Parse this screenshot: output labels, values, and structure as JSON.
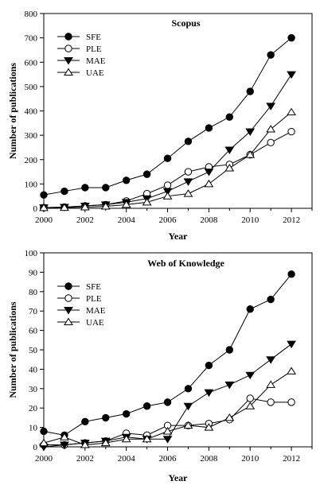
{
  "chart_data": [
    {
      "type": "line",
      "title": "Scopus",
      "xlabel": "Year",
      "ylabel": "Number of publications",
      "x": [
        2000,
        2001,
        2002,
        2003,
        2004,
        2005,
        2006,
        2007,
        2008,
        2009,
        2010,
        2011,
        2012
      ],
      "xlim": [
        2000,
        2013
      ],
      "ylim": [
        0,
        800
      ],
      "xticks": [
        2000,
        2002,
        2004,
        2006,
        2008,
        2010,
        2012
      ],
      "yticks": [
        0,
        100,
        200,
        300,
        400,
        500,
        600,
        700,
        800
      ],
      "legend_position": "top-left",
      "series": [
        {
          "name": "SFE",
          "marker": "filled-circle",
          "values": [
            55,
            70,
            85,
            85,
            115,
            140,
            205,
            275,
            330,
            375,
            480,
            630,
            700
          ]
        },
        {
          "name": "PLE",
          "marker": "open-circle",
          "values": [
            3,
            5,
            10,
            15,
            30,
            60,
            95,
            150,
            170,
            180,
            220,
            270,
            315
          ]
        },
        {
          "name": "MAE",
          "marker": "filled-triangle-down",
          "values": [
            3,
            5,
            10,
            15,
            25,
            40,
            70,
            110,
            150,
            240,
            315,
            420,
            550
          ]
        },
        {
          "name": "UAE",
          "marker": "open-triangle-up",
          "values": [
            2,
            3,
            5,
            8,
            15,
            25,
            50,
            60,
            100,
            165,
            220,
            325,
            395
          ]
        }
      ]
    },
    {
      "type": "line",
      "title": "Web of Knowledge",
      "xlabel": "Year",
      "ylabel": "Number of publications",
      "x": [
        2000,
        2001,
        2002,
        2003,
        2004,
        2005,
        2006,
        2007,
        2008,
        2009,
        2010,
        2011,
        2012
      ],
      "xlim": [
        2000,
        2013
      ],
      "ylim": [
        0,
        100
      ],
      "xticks": [
        2000,
        2002,
        2004,
        2006,
        2008,
        2010,
        2012
      ],
      "yticks": [
        0,
        10,
        20,
        30,
        40,
        50,
        60,
        70,
        80,
        90,
        100
      ],
      "legend_position": "top-left",
      "series": [
        {
          "name": "SFE",
          "marker": "filled-circle",
          "values": [
            8,
            6,
            13,
            15,
            17,
            21,
            23,
            30,
            42,
            50,
            71,
            76,
            89
          ]
        },
        {
          "name": "PLE",
          "marker": "open-circle",
          "values": [
            1,
            1,
            2,
            3,
            7,
            6,
            11,
            11,
            12,
            14,
            25,
            23,
            23
          ]
        },
        {
          "name": "MAE",
          "marker": "filled-triangle-down",
          "values": [
            0,
            1,
            2,
            3,
            5,
            4,
            4,
            21,
            28,
            32,
            37,
            45,
            53
          ]
        },
        {
          "name": "UAE",
          "marker": "open-triangle-up",
          "values": [
            2,
            5,
            1,
            2,
            4,
            4,
            8,
            11,
            10,
            15,
            21,
            32,
            39
          ]
        }
      ]
    }
  ]
}
